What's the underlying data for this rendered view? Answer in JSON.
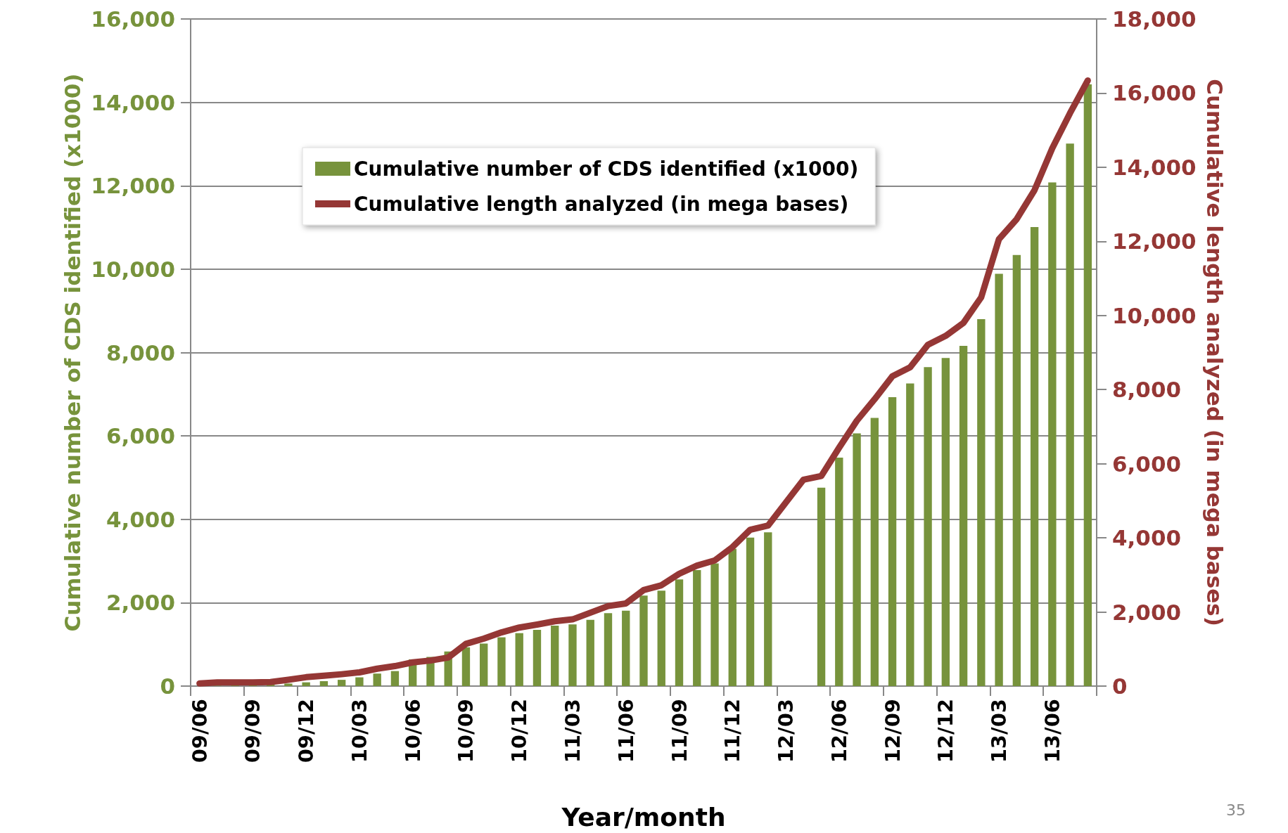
{
  "chart_data": {
    "type": "bar",
    "categories": [
      "09/06",
      null,
      null,
      "09/09",
      null,
      null,
      "09/12",
      null,
      null,
      "10/03",
      null,
      null,
      "10/06",
      null,
      null,
      "10/09",
      null,
      null,
      "10/12",
      null,
      null,
      "11/03",
      null,
      null,
      "11/06",
      null,
      null,
      "11/09",
      null,
      null,
      "11/12",
      null,
      null,
      "12/03",
      null,
      null,
      "12/06",
      null,
      null,
      "12/09",
      null,
      null,
      "12/12",
      null,
      null,
      "13/03",
      null,
      null,
      "13/06",
      null,
      null
    ],
    "series": [
      {
        "name": "Cumulative number of CDS identified (x1000)",
        "color": "#77933c",
        "values": [
          null,
          10,
          20,
          30,
          40,
          60,
          90,
          120,
          150,
          210,
          300,
          360,
          640,
          700,
          830,
          930,
          1020,
          1170,
          1270,
          1350,
          1450,
          1480,
          1590,
          1750,
          1810,
          2170,
          2290,
          2560,
          2780,
          2940,
          3290,
          3560,
          3690,
          null,
          null,
          4760,
          5480,
          6060,
          6430,
          6930,
          7260,
          7650,
          7870,
          8160,
          8800,
          9890,
          10340,
          11010,
          12080,
          13010,
          14430
        ]
      },
      {
        "name": "Cumulative length analyzed (in mega bases)",
        "type": "line",
        "axis": "y2",
        "color": "#953735",
        "values": [
          70,
          100,
          100,
          100,
          110,
          170,
          240,
          280,
          320,
          370,
          470,
          540,
          640,
          690,
          770,
          1140,
          1280,
          1450,
          1580,
          1660,
          1750,
          1800,
          1980,
          2160,
          2230,
          2590,
          2720,
          3030,
          3250,
          3390,
          3750,
          4220,
          4330,
          4950,
          5570,
          5670,
          6430,
          7160,
          7740,
          8360,
          8600,
          9210,
          9450,
          9800,
          10490,
          12060,
          12600,
          13380,
          14510,
          15460,
          16340
        ]
      }
    ],
    "xlabel": "Year/month",
    "ylabel": "Cumulative number of CDS identified (x1000)",
    "y2label": "Cumulative length analyzed (in mega bases)",
    "ylim": [
      0,
      16000
    ],
    "yticks": [
      0,
      {
        "value": 2000,
        "label": "2,000"
      },
      {
        "value": 4000,
        "label": "4,000"
      },
      {
        "value": 6000,
        "label": "6,000"
      },
      {
        "value": 8000,
        "label": "8,000"
      },
      {
        "value": 10000,
        "label": "10,000"
      },
      {
        "value": 12000,
        "label": "12,000"
      },
      {
        "value": 14000,
        "label": "14,000"
      },
      {
        "value": 16000,
        "label": "16,000"
      }
    ],
    "y2lim": [
      0,
      18000
    ],
    "y2ticks": [
      0,
      {
        "value": 2000,
        "label": "2,000"
      },
      {
        "value": 4000,
        "label": "4,000"
      },
      {
        "value": 6000,
        "label": "6,000"
      },
      {
        "value": 8000,
        "label": "8,000"
      },
      {
        "value": 10000,
        "label": "10,000"
      },
      {
        "value": 12000,
        "label": "12,000"
      },
      {
        "value": 14000,
        "label": "14,000"
      },
      {
        "value": 16000,
        "label": "16,000"
      },
      {
        "value": 18000,
        "label": "18,000"
      }
    ],
    "grid": "y",
    "legend": "top left",
    "marker": "none",
    "line_style": "solid",
    "annotations": [
      "35"
    ]
  }
}
